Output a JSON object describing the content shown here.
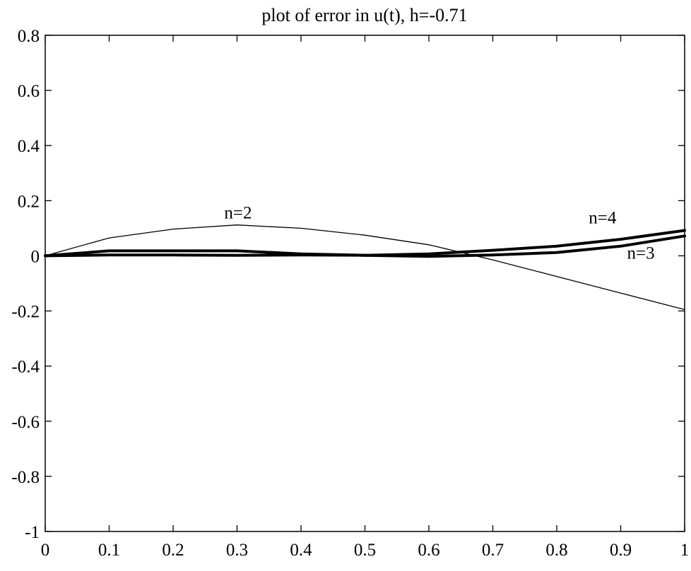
{
  "chart_data": {
    "type": "line",
    "title": "plot of error in u(t), h=-0.71",
    "xlabel": "",
    "ylabel": "",
    "xlim": [
      0,
      1
    ],
    "ylim": [
      -1,
      0.8
    ],
    "x_ticks": [
      0,
      0.1,
      0.2,
      0.3,
      0.4,
      0.5,
      0.6,
      0.7,
      0.8,
      0.9,
      1
    ],
    "x_tick_labels": [
      "0",
      "0.1",
      "0.2",
      "0.3",
      "0.4",
      "0.5",
      "0.6",
      "0.7",
      "0.8",
      "0.9",
      "1"
    ],
    "y_ticks": [
      -1,
      -0.8,
      -0.6,
      -0.4,
      -0.2,
      0,
      0.2,
      0.4,
      0.6,
      0.8
    ],
    "y_tick_labels": [
      "-1",
      "-0.8",
      "-0.6",
      "-0.4",
      "-0.2",
      "0",
      "0.2",
      "0.4",
      "0.6",
      "0.8"
    ],
    "grid": false,
    "legend": "none",
    "line_color": "#000000",
    "x": [
      0,
      0.1,
      0.2,
      0.3,
      0.4,
      0.5,
      0.6,
      0.7,
      0.8,
      0.9,
      1
    ],
    "series": [
      {
        "name": "n=2",
        "values": [
          0,
          0.065,
          0.097,
          0.112,
          0.1,
          0.075,
          0.04,
          -0.015,
          -0.075,
          -0.135,
          -0.195
        ],
        "weight": "thin"
      },
      {
        "name": "n=3",
        "values": [
          0,
          0.003,
          0.003,
          0.002,
          0.003,
          0.002,
          -0.002,
          0.003,
          0.012,
          0.035,
          0.072
        ],
        "weight": "bold"
      },
      {
        "name": "n=4",
        "values": [
          0,
          0.018,
          0.018,
          0.018,
          0.007,
          0.002,
          0.007,
          0.02,
          0.035,
          0.06,
          0.092
        ],
        "weight": "bold"
      }
    ],
    "annotations": [
      {
        "text": "n=2",
        "x": 0.28,
        "y": 0.135
      },
      {
        "text": "n=4",
        "x": 0.85,
        "y": 0.117
      },
      {
        "text": "n=3",
        "x": 0.91,
        "y": -0.01
      }
    ]
  }
}
